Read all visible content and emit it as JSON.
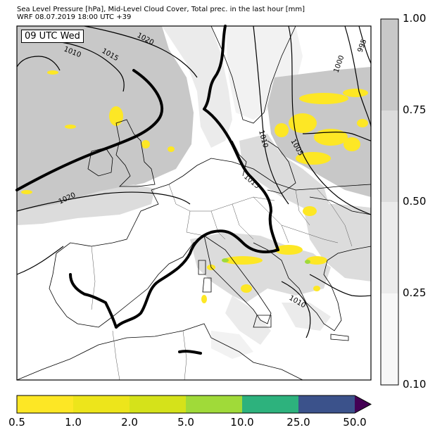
{
  "header": {
    "line1": "Sea Level Pressure [hPa], Mid-Level Cloud Cover, Total prec. in the last hour [mm]",
    "line2": "WRF 08.07.2019 18:00 UTC +39"
  },
  "valid_time": "09 UTC Wed",
  "isobar_labels": [
    "1020",
    "1010",
    "1015",
    "1000",
    "995",
    "1010",
    "1005",
    "1020",
    "1015",
    "1010"
  ],
  "cloud_colorbar": {
    "ticks": [
      "1.00",
      "0.75",
      "0.50",
      "0.25",
      "0.10"
    ],
    "colors": [
      "#c8c8c8",
      "#dcdcdc",
      "#ebebeb",
      "#f7f7f7"
    ]
  },
  "precip_colorbar": {
    "ticks": [
      "0.5",
      "1.0",
      "2.0",
      "5.0",
      "10.0",
      "25.0",
      "50.0"
    ],
    "colors": [
      "#fde725",
      "#ede51b",
      "#d5e21a",
      "#a0da39",
      "#2db27d",
      "#3b528b",
      "#440154"
    ]
  }
}
